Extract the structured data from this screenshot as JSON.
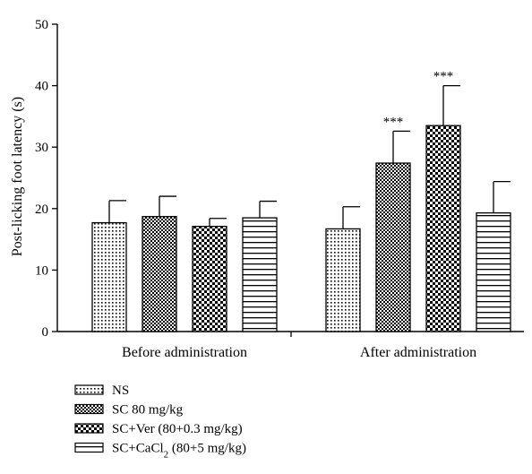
{
  "chart_data": {
    "type": "bar",
    "title": "",
    "xlabel": "",
    "ylabel": "Post-licking foot latency (s)",
    "ylim": [
      0,
      50
    ],
    "yticks": [
      0,
      10,
      20,
      30,
      40,
      50
    ],
    "grid": false,
    "legend_position": "bottom-left",
    "categories": [
      "Before administration",
      "After administration"
    ],
    "series": [
      {
        "name": "NS",
        "pattern": "dots",
        "values": [
          17.7,
          16.7
        ],
        "errors": [
          3.6,
          3.6
        ],
        "significance": [
          "",
          ""
        ]
      },
      {
        "name": "SC 80 mg/kg",
        "pattern": "fine-check",
        "values": [
          18.7,
          27.4
        ],
        "errors": [
          3.3,
          5.2
        ],
        "significance": [
          "",
          "***"
        ]
      },
      {
        "name": "SC+Ver (80+0.3 mg/kg)",
        "pattern": "coarse-check",
        "values": [
          17.1,
          33.5
        ],
        "errors": [
          1.3,
          6.5
        ],
        "significance": [
          "",
          "***"
        ]
      },
      {
        "name": "SC+CaCl2 (80+5 mg/kg)",
        "name_main": "SC+CaCl",
        "name_sub": "2",
        "name_tail": " (80+5 mg/kg)",
        "pattern": "horizontal-lines",
        "values": [
          18.5,
          19.3
        ],
        "errors": [
          2.7,
          5.1
        ],
        "significance": [
          "",
          ""
        ]
      }
    ]
  }
}
